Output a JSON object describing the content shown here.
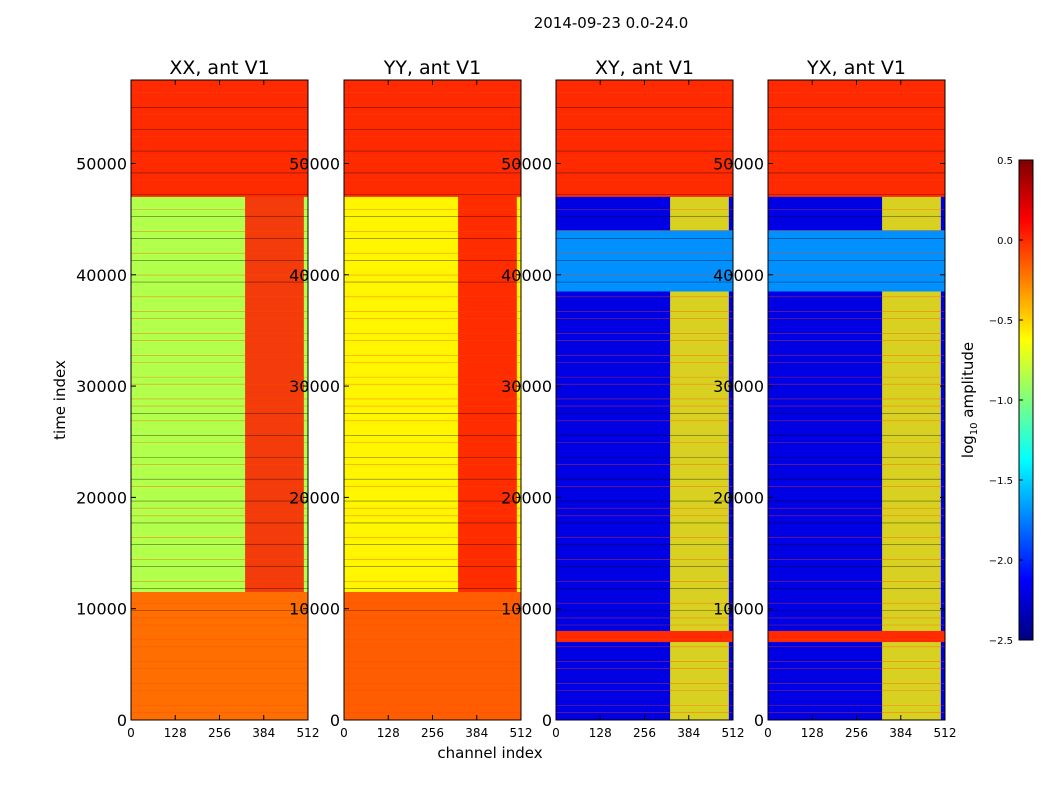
{
  "figure_title": "2014-09-23 0.0-24.0",
  "colors": {
    "jet": [
      "#00007f",
      "#0000ff",
      "#007fff",
      "#00ffff",
      "#7fff7f",
      "#ffff00",
      "#ff7f00",
      "#ff0000",
      "#7f0000"
    ],
    "flag_band": "#ff4a00"
  },
  "colorbar": {
    "label_main": "log",
    "label_sub": "10",
    "label_rest": " amplitude",
    "range": [
      -2.5,
      0.5
    ],
    "ticks": [
      "0.5",
      "0.0",
      "−0.5",
      "−1.0",
      "−1.5",
      "−2.0",
      "−2.5"
    ],
    "tick_values": [
      0.5,
      0.0,
      -0.5,
      -1.0,
      -1.5,
      -2.0,
      -2.5
    ]
  },
  "chart_data": [
    {
      "type": "heatmap",
      "title": "XX, ant V1",
      "xlabel": "",
      "ylabel": "time index",
      "xlim": [
        0,
        512
      ],
      "ylim": [
        0,
        57500
      ],
      "xticks": [
        "0",
        "128",
        "256",
        "384",
        "512"
      ],
      "xtick_values": [
        0,
        128,
        256,
        384,
        512
      ],
      "yticks": [
        "0",
        "10000",
        "20000",
        "30000",
        "40000",
        "50000"
      ],
      "ytick_values": [
        0,
        10000,
        20000,
        30000,
        40000,
        50000
      ],
      "base_level": -0.85,
      "time_bands": [
        {
          "t0": 0,
          "t1": 11500,
          "level": -0.2
        },
        {
          "t0": 47000,
          "t1": 57500,
          "level": 0.0
        }
      ],
      "rfi_channels": {
        "c0": 330,
        "c1": 500,
        "level": 0.05
      }
    },
    {
      "type": "heatmap",
      "title": "YY, ant V1",
      "xlabel": "channel index",
      "ylabel": "",
      "xlim": [
        0,
        512
      ],
      "ylim": [
        0,
        57500
      ],
      "xticks": [
        "0",
        "128",
        "256",
        "384",
        "512"
      ],
      "xtick_values": [
        0,
        128,
        256,
        384,
        512
      ],
      "yticks": [
        "0",
        "10000",
        "20000",
        "30000",
        "40000",
        "50000"
      ],
      "ytick_values": [
        0,
        10000,
        20000,
        30000,
        40000,
        50000
      ],
      "base_level": -0.6,
      "time_bands": [
        {
          "t0": 0,
          "t1": 11500,
          "level": -0.15
        },
        {
          "t0": 47000,
          "t1": 57500,
          "level": 0.0
        }
      ],
      "rfi_channels": {
        "c0": 330,
        "c1": 500,
        "level": 0.1
      }
    },
    {
      "type": "heatmap",
      "title": "XY, ant V1",
      "xlabel": "",
      "ylabel": "",
      "xlim": [
        0,
        512
      ],
      "ylim": [
        0,
        57500
      ],
      "xticks": [
        "0",
        "128",
        "256",
        "384",
        "512"
      ],
      "xtick_values": [
        0,
        128,
        256,
        384,
        512
      ],
      "yticks": [
        "0",
        "10000",
        "20000",
        "30000",
        "40000",
        "50000"
      ],
      "ytick_values": [
        0,
        10000,
        20000,
        30000,
        40000,
        50000
      ],
      "base_level": -2.2,
      "time_bands": [
        {
          "t0": 7000,
          "t1": 8000,
          "level": 0.0
        },
        {
          "t0": 38500,
          "t1": 44000,
          "level": -1.7
        },
        {
          "t0": 47000,
          "t1": 57500,
          "level": 0.0
        }
      ],
      "rfi_channels": {
        "c0": 330,
        "c1": 500,
        "level": -0.6
      }
    },
    {
      "type": "heatmap",
      "title": "YX, ant V1",
      "xlabel": "",
      "ylabel": "",
      "xlim": [
        0,
        512
      ],
      "ylim": [
        0,
        57500
      ],
      "xticks": [
        "0",
        "128",
        "256",
        "384",
        "512"
      ],
      "xtick_values": [
        0,
        128,
        256,
        384,
        512
      ],
      "yticks": [
        "0",
        "10000",
        "20000",
        "30000",
        "40000",
        "50000"
      ],
      "ytick_values": [
        0,
        10000,
        20000,
        30000,
        40000,
        50000
      ],
      "base_level": -2.2,
      "time_bands": [
        {
          "t0": 7000,
          "t1": 8000,
          "level": 0.0
        },
        {
          "t0": 38500,
          "t1": 44000,
          "level": -1.7
        },
        {
          "t0": 47000,
          "t1": 57500,
          "level": 0.0
        }
      ],
      "rfi_channels": {
        "c0": 330,
        "c1": 500,
        "level": -0.6
      }
    }
  ]
}
